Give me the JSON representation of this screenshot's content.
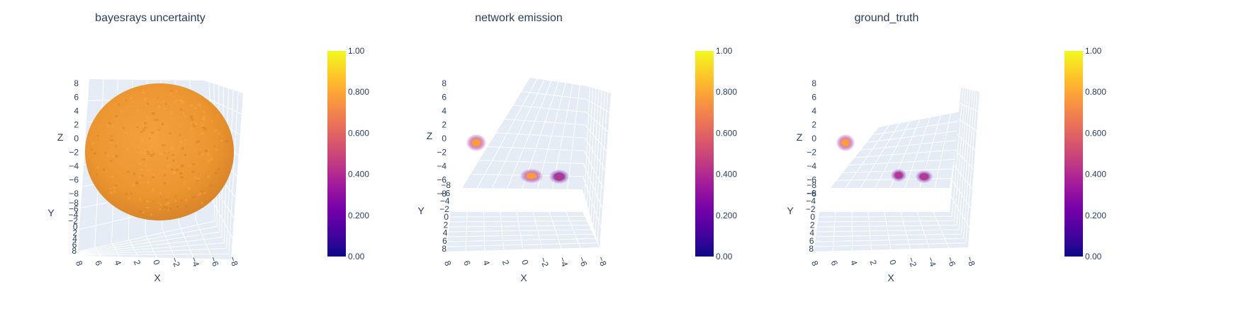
{
  "chart_data": [
    {
      "type": "3d-volume",
      "title": "bayesrays uncertainty",
      "axes": {
        "x": "X",
        "y": "Y",
        "z": "Z"
      },
      "x_ticks": [
        "8",
        "6",
        "4",
        "2",
        "0",
        "−2",
        "−4",
        "−6",
        "−8"
      ],
      "y_ticks": [
        "−8",
        "−6",
        "−4",
        "−2",
        "0",
        "2",
        "4",
        "6",
        "8"
      ],
      "z_ticks": [
        "8",
        "6",
        "4",
        "2",
        "0",
        "−2",
        "−4",
        "−6",
        "−8"
      ],
      "colorscale": "plasma",
      "colorbar": {
        "range": [
          0,
          1
        ],
        "ticks": [
          "1.00",
          "0.800",
          "0.600",
          "0.400",
          "0.200",
          "0.00"
        ]
      },
      "blobs": [
        {
          "x": 0,
          "y": 0,
          "z": 0,
          "radius": 7,
          "value": 0.8
        }
      ]
    },
    {
      "type": "3d-volume",
      "title": "network emission",
      "axes": {
        "x": "X",
        "y": "Y",
        "z": "Z"
      },
      "x_ticks": [
        "8",
        "6",
        "4",
        "2",
        "0",
        "−2",
        "−4",
        "−6",
        "−8"
      ],
      "y_ticks": [
        "−8",
        "−6",
        "−4",
        "−2",
        "0",
        "2",
        "4",
        "6",
        "8"
      ],
      "z_ticks": [
        "8",
        "6",
        "4",
        "2",
        "0",
        "−2",
        "−4",
        "−6",
        "−8"
      ],
      "colorscale": "plasma",
      "colorbar": {
        "range": [
          0,
          1
        ],
        "ticks": [
          "1.00",
          "0.800",
          "0.600",
          "0.400",
          "0.200",
          "0.00"
        ]
      },
      "blobs": [
        {
          "x": 5,
          "y": -5,
          "z": -1,
          "value": 0.8
        },
        {
          "x": -1,
          "y": 1,
          "z": -6,
          "value": 0.8
        },
        {
          "x": -4,
          "y": 2,
          "z": -6,
          "value": 0.4
        }
      ]
    },
    {
      "type": "3d-volume",
      "title": "ground_truth",
      "axes": {
        "x": "X",
        "y": "Y",
        "z": "Z"
      },
      "x_ticks": [
        "8",
        "6",
        "4",
        "2",
        "0",
        "−2",
        "−4",
        "−6",
        "−8"
      ],
      "y_ticks": [
        "−8",
        "−6",
        "−4",
        "−2",
        "0",
        "2",
        "4",
        "6",
        "8"
      ],
      "z_ticks": [
        "8",
        "6",
        "4",
        "2",
        "0",
        "−2",
        "−4",
        "−6",
        "−8"
      ],
      "colorscale": "plasma",
      "colorbar": {
        "range": [
          0,
          1
        ],
        "ticks": [
          "1.00",
          "0.800",
          "0.600",
          "0.400",
          "0.200",
          "0.00"
        ]
      },
      "blobs": [
        {
          "x": 5,
          "y": -5,
          "z": -1,
          "value": 0.8
        },
        {
          "x": -1,
          "y": 1,
          "z": -6,
          "value": 0.45
        },
        {
          "x": -4,
          "y": 2,
          "z": -6,
          "value": 0.45
        }
      ]
    }
  ],
  "colors": {
    "plasma": [
      "#0d0887",
      "#46039f",
      "#7201a8",
      "#9c179e",
      "#bd3786",
      "#d8576b",
      "#ed7953",
      "#fb9f3a",
      "#fdca26",
      "#f0f921"
    ],
    "pane": "#e5ecf6",
    "text": "#2a3f5f"
  }
}
